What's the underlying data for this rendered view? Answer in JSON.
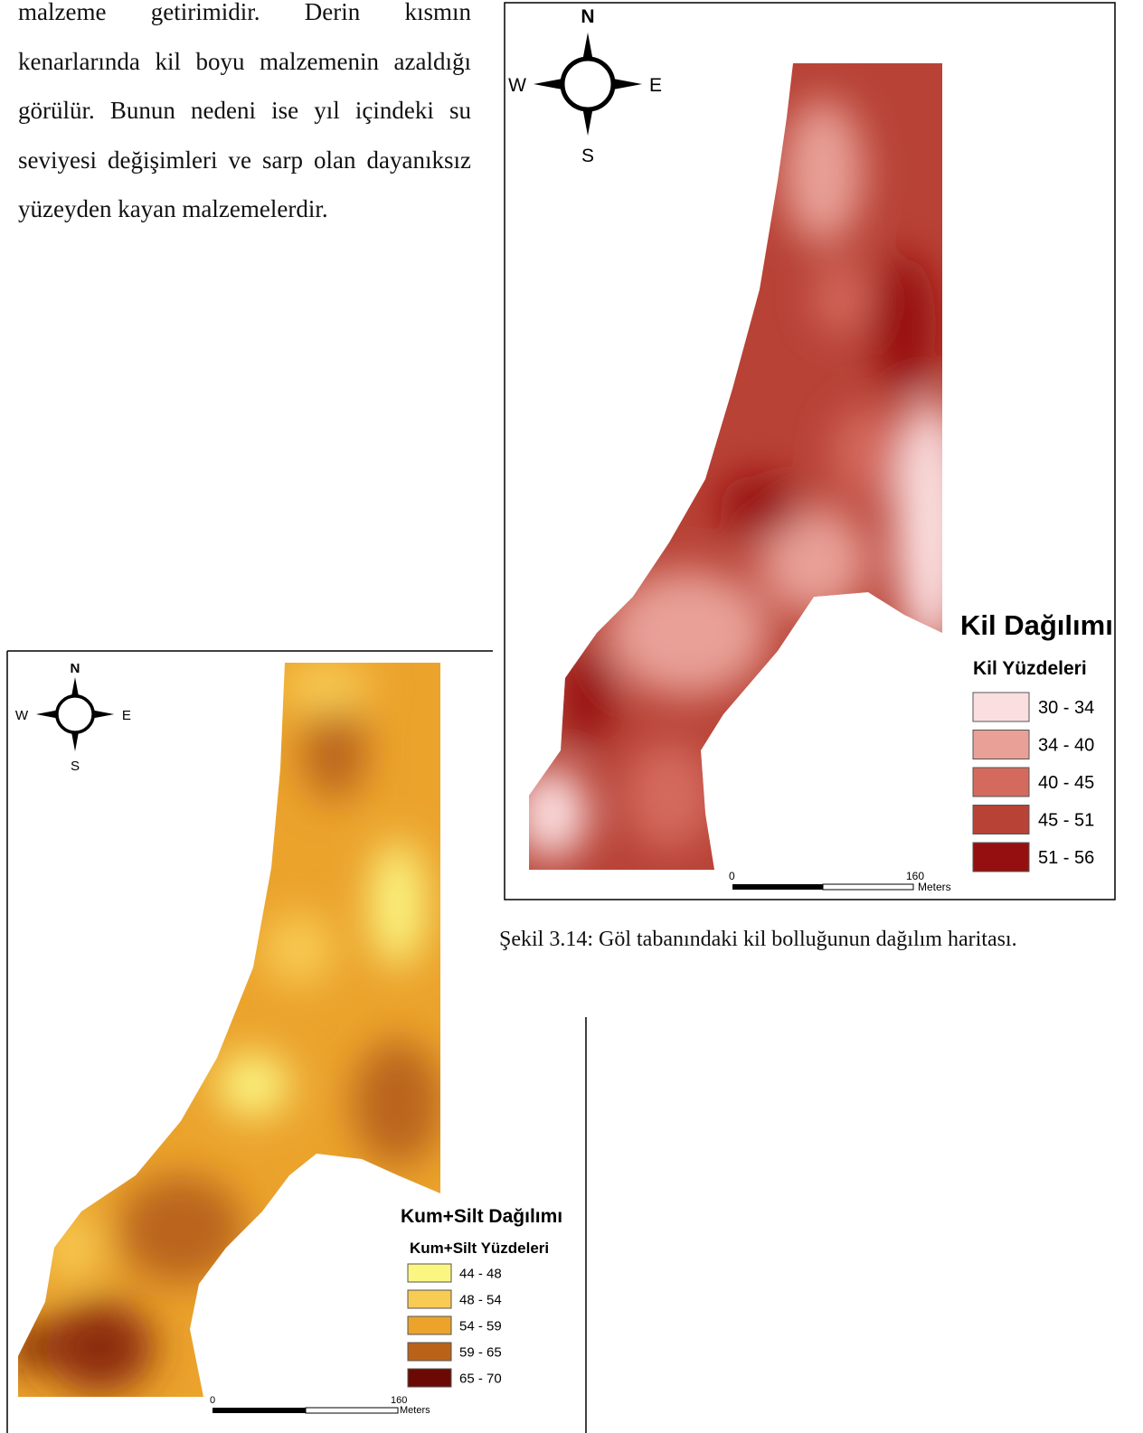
{
  "paragraph": "malzeme getirimidir.  Derin kısmın kenarlarında kil boyu malzemenin azaldığı görülür.  Bunun nedeni ise yıl içindeki su seviyesi değişimleri ve sarp olan dayanıksız yüzeyden kayan malzemelerdir.",
  "map_1": {
    "compass": {
      "n": "N",
      "e": "E",
      "s": "S",
      "w": "W"
    },
    "legend": {
      "title": "Kil Dağılımı",
      "subtitle": "Kil Yüzdeleri",
      "items": [
        {
          "label": "30 - 34",
          "color": "#fbdfe0"
        },
        {
          "label": "34 - 40",
          "color": "#e8a097"
        },
        {
          "label": "40 - 45",
          "color": "#d46a5e"
        },
        {
          "label": "45 - 51",
          "color": "#b84236"
        },
        {
          "label": "51 - 56",
          "color": "#960f10"
        }
      ]
    },
    "scale": {
      "start": 0,
      "end": 160,
      "unit": "Meters"
    }
  },
  "caption": "Şekil 3.14: Göl tabanındaki kil bolluğunun dağılım haritası.",
  "map_2": {
    "compass": {
      "n": "N",
      "e": "E",
      "s": "S",
      "w": "W"
    },
    "legend": {
      "title": "Kum+Silt Dağılımı",
      "subtitle": "Kum+Silt Yüzdeleri",
      "items": [
        {
          "label": "44 - 48",
          "color": "#fbf682"
        },
        {
          "label": "48 - 54",
          "color": "#f8cb52"
        },
        {
          "label": "54 - 59",
          "color": "#eba32c"
        },
        {
          "label": "59 - 65",
          "color": "#b9631a"
        },
        {
          "label": "65 - 70",
          "color": "#6b0a04"
        }
      ]
    },
    "scale": {
      "start": 0,
      "end": 160,
      "unit": "Meters"
    }
  }
}
